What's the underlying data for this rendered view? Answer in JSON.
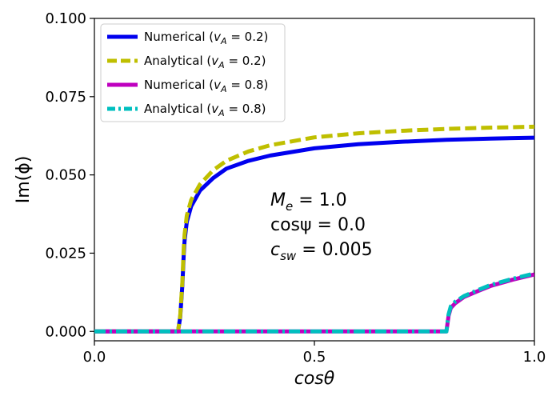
{
  "chart_data": {
    "type": "line",
    "xlabel": "cosθ",
    "ylabel": "Im(ϕ)",
    "xlim": [
      0.0,
      1.0
    ],
    "ylim": [
      -0.003,
      0.1
    ],
    "x_ticks": [
      {
        "value": 0.0,
        "label": "0.0"
      },
      {
        "value": 0.5,
        "label": "0.5"
      },
      {
        "value": 1.0,
        "label": "1.0"
      }
    ],
    "y_ticks": [
      {
        "value": 0.0,
        "label": "0.000"
      },
      {
        "value": 0.025,
        "label": "0.025"
      },
      {
        "value": 0.05,
        "label": "0.050"
      },
      {
        "value": 0.075,
        "label": "0.075"
      },
      {
        "value": 0.1,
        "label": "0.100"
      }
    ],
    "legend_position": "top-left",
    "series": [
      {
        "name": "Numerical (vA = 0.2)",
        "legend_main": "Numerical (",
        "legend_var": "v",
        "legend_sub": "A",
        "legend_rest": " = 0.2)",
        "color": "#0000ee",
        "dash": "solid",
        "x": [
          0.0,
          0.19,
          0.195,
          0.2,
          0.203,
          0.205,
          0.21,
          0.22,
          0.24,
          0.27,
          0.3,
          0.35,
          0.4,
          0.5,
          0.6,
          0.7,
          0.8,
          0.9,
          1.0
        ],
        "y": [
          0.0,
          0.0,
          0.0045,
          0.015,
          0.0245,
          0.029,
          0.035,
          0.04,
          0.045,
          0.049,
          0.052,
          0.0545,
          0.0562,
          0.0585,
          0.0598,
          0.0606,
          0.0612,
          0.0616,
          0.0619
        ]
      },
      {
        "name": "Analytical (vA = 0.2)",
        "legend_main": "Analytical (",
        "legend_var": "v",
        "legend_sub": "A",
        "legend_rest": " = 0.2)",
        "color": "#bfbf00",
        "dash": "dashed",
        "x": [
          0.0,
          0.19,
          0.195,
          0.2,
          0.203,
          0.205,
          0.21,
          0.22,
          0.24,
          0.27,
          0.3,
          0.35,
          0.4,
          0.5,
          0.6,
          0.7,
          0.8,
          0.9,
          1.0
        ],
        "y": [
          0.0,
          0.0,
          0.005,
          0.016,
          0.0265,
          0.031,
          0.037,
          0.042,
          0.047,
          0.0515,
          0.0545,
          0.0575,
          0.0595,
          0.062,
          0.0633,
          0.0641,
          0.0647,
          0.0651,
          0.0654
        ]
      },
      {
        "name": "Numerical (vA = 0.8)",
        "legend_main": "Numerical (",
        "legend_var": "v",
        "legend_sub": "A",
        "legend_rest": " = 0.8)",
        "color": "#bf00bf",
        "dash": "solid",
        "x": [
          0.0,
          0.79,
          0.8,
          0.802,
          0.805,
          0.81,
          0.82,
          0.84,
          0.87,
          0.9,
          0.95,
          1.0
        ],
        "y": [
          0.0,
          0.0,
          0.0,
          0.002,
          0.005,
          0.0075,
          0.009,
          0.011,
          0.0128,
          0.0145,
          0.0165,
          0.0182
        ]
      },
      {
        "name": "Analytical (vA = 0.8)",
        "legend_main": "Analytical (",
        "legend_var": "v",
        "legend_sub": "A",
        "legend_rest": " = 0.8)",
        "color": "#00bfbf",
        "dash": "dashdot",
        "x": [
          0.0,
          0.79,
          0.8,
          0.802,
          0.805,
          0.81,
          0.82,
          0.84,
          0.87,
          0.9,
          0.95,
          1.0
        ],
        "y": [
          0.0,
          0.0,
          0.0,
          0.0022,
          0.0055,
          0.008,
          0.0095,
          0.0113,
          0.0131,
          0.0148,
          0.0168,
          0.0185
        ]
      }
    ],
    "annotations": [
      {
        "main": "M",
        "sub": "e",
        "rest": " = 1.0"
      },
      {
        "main": "cosψ = 0.0",
        "sub": "",
        "rest": ""
      },
      {
        "main": "c",
        "sub": "sw",
        "rest": " = 0.005"
      }
    ]
  }
}
